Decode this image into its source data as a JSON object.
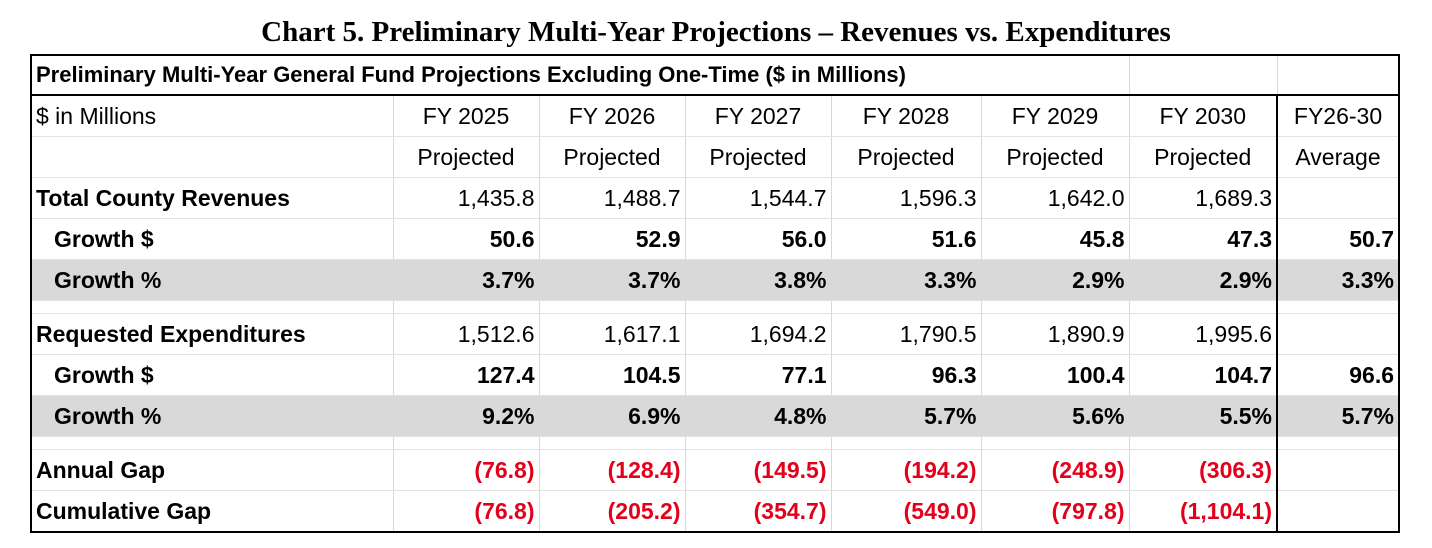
{
  "title": "Chart 5. Preliminary Multi-Year Projections – Revenues vs. Expenditures",
  "table_caption": "Preliminary Multi-Year General Fund Projections Excluding One-Time ($ in Millions)",
  "header": {
    "label": "$ in Millions",
    "years": [
      "FY 2025",
      "FY 2026",
      "FY 2027",
      "FY 2028",
      "FY 2029",
      "FY 2030"
    ],
    "sub": [
      "Projected",
      "Projected",
      "Projected",
      "Projected",
      "Projected",
      "Projected"
    ],
    "avg_label": "FY26-30",
    "avg_sub": "Average"
  },
  "revenues": {
    "label": "Total County Revenues",
    "values": [
      "1,435.8",
      "1,488.7",
      "1,544.7",
      "1,596.3",
      "1,642.0",
      "1,689.3"
    ],
    "avg": "",
    "growth_dollar": {
      "label": "Growth $",
      "values": [
        "50.6",
        "52.9",
        "56.0",
        "51.6",
        "45.8",
        "47.3"
      ],
      "avg": "50.7"
    },
    "growth_pct": {
      "label": "Growth %",
      "values": [
        "3.7%",
        "3.7%",
        "3.8%",
        "3.3%",
        "2.9%",
        "2.9%"
      ],
      "avg": "3.3%"
    }
  },
  "expenditures": {
    "label": "Requested Expenditures",
    "values": [
      "1,512.6",
      "1,617.1",
      "1,694.2",
      "1,790.5",
      "1,890.9",
      "1,995.6"
    ],
    "avg": "",
    "growth_dollar": {
      "label": "Growth $",
      "values": [
        "127.4",
        "104.5",
        "77.1",
        "96.3",
        "100.4",
        "104.7"
      ],
      "avg": "96.6"
    },
    "growth_pct": {
      "label": "Growth %",
      "values": [
        "9.2%",
        "6.9%",
        "4.8%",
        "5.7%",
        "5.6%",
        "5.5%"
      ],
      "avg": "5.7%"
    }
  },
  "annual_gap": {
    "label": "Annual Gap",
    "values": [
      "(76.8)",
      "(128.4)",
      "(149.5)",
      "(194.2)",
      "(248.9)",
      "(306.3)"
    ]
  },
  "cumulative_gap": {
    "label": "Cumulative Gap",
    "values": [
      "(76.8)",
      "(205.2)",
      "(354.7)",
      "(549.0)",
      "(797.8)",
      "(1,104.1)"
    ]
  },
  "colors": {
    "gap_red": "#e3001b",
    "shade": "#d9d9d9"
  }
}
